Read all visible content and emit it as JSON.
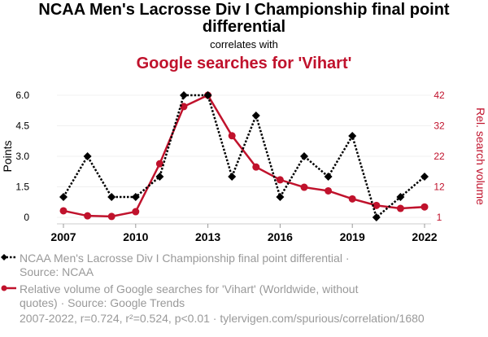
{
  "chart_data": {
    "type": "line",
    "title": "NCAA Men's Lacrosse Div I Championship final point differential",
    "correlates_label": "correlates with",
    "subtitle": "Google searches for 'Vihart'",
    "x": [
      2007,
      2008,
      2009,
      2010,
      2011,
      2012,
      2013,
      2014,
      2015,
      2016,
      2017,
      2018,
      2019,
      2020,
      2021,
      2022
    ],
    "x_ticks": [
      "2007",
      "2010",
      "2013",
      "2016",
      "2019",
      "2022"
    ],
    "left_axis": {
      "label": "Points",
      "range": [
        0,
        6
      ],
      "ticks": [
        "0",
        "1.5",
        "3.0",
        "4.5",
        "6.0"
      ]
    },
    "right_axis": {
      "label": "Rel. search volume",
      "range": [
        1,
        42
      ],
      "ticks": [
        "1",
        "12",
        "22",
        "32",
        "42"
      ],
      "color": "#c0122c"
    },
    "grid": true,
    "series": [
      {
        "name": "NCAA Men's Lacrosse Div I Championship final point differential",
        "axis": "left",
        "color": "#000000",
        "style": "dotted",
        "marker": "diamond",
        "values": [
          1,
          3,
          1,
          1,
          2,
          6,
          6,
          2,
          5,
          1,
          3,
          2,
          4,
          0,
          1,
          2
        ]
      },
      {
        "name": "Relative volume of Google searches for 'Vihart'",
        "axis": "right",
        "color": "#c0122c",
        "style": "solid",
        "marker": "circle",
        "values": [
          3.2,
          1.5,
          1.3,
          2.9,
          19.0,
          38.2,
          42,
          28.4,
          17.9,
          13.6,
          11.1,
          9.9,
          7.2,
          5.0,
          4.0,
          4.5
        ]
      }
    ],
    "legend": [
      {
        "line1": "NCAA Men's Lacrosse Div I Championship final point differential ·",
        "line2": "Source: NCAA"
      },
      {
        "line1": "Relative volume of Google searches for 'Vihart' (Worldwide, without",
        "line2": "quotes) · Source: Google Trends"
      }
    ],
    "footer": "2007-2022, r=0.724, r²=0.524, p<0.01 · tylervigen.com/spurious/correlation/1680"
  }
}
